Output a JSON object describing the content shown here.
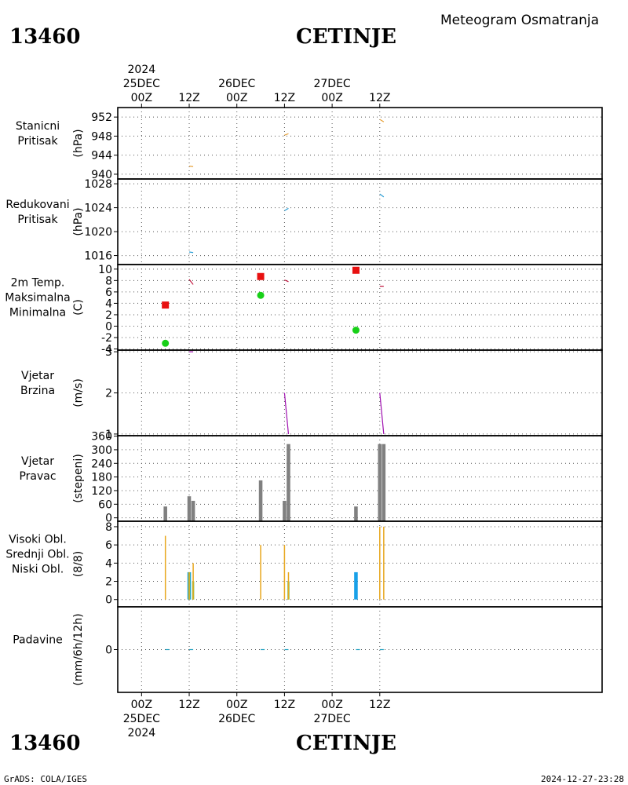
{
  "header": {
    "station_id": "13460",
    "station_name": "CETINJE",
    "subtitle": "Meteogram Osmatranja"
  },
  "footer": {
    "left": "GrADS: COLA/IGES",
    "right": "2024-12-27-23:28"
  },
  "colors": {
    "pressure_station": "#e8a33c",
    "pressure_reduced": "#2a9fd6",
    "temp_label": "#c0143c",
    "temp_max": "#e81010",
    "temp_min": "#18d018",
    "wind": "#a010b0",
    "wind_dir_bar": "#808080",
    "cloud_high": "#18a0e8",
    "cloud_mid": "#60c060",
    "cloud_low": "#e8a820",
    "precip": "#20a0c0"
  },
  "chart_data": {
    "type": "meteogram",
    "time_axis": {
      "unit": "hours since first tick",
      "range": [
        -6,
        116
      ],
      "ticks": [
        {
          "h": 0,
          "label": "00Z",
          "date": "25DEC",
          "year": "2024"
        },
        {
          "h": 12,
          "label": "12Z"
        },
        {
          "h": 24,
          "label": "00Z",
          "date": "26DEC"
        },
        {
          "h": 36,
          "label": "12Z"
        },
        {
          "h": 48,
          "label": "00Z",
          "date": "27DEC"
        },
        {
          "h": 60,
          "label": "12Z"
        }
      ]
    },
    "panels": [
      {
        "id": "station_pressure",
        "labels": [
          "Stanicni",
          "Pritisak"
        ],
        "label_colors": [
          "pressure_station",
          "pressure_station"
        ],
        "unit": "(hPa)",
        "ylim": [
          939,
          954
        ],
        "yticks": [
          940,
          944,
          948,
          952
        ],
        "series": [
          {
            "type": "line",
            "color": "pressure_station",
            "segments": [
              [
                [
                  12.0,
                  941.7
                ],
                [
                  13.0,
                  941.6
                ]
              ],
              [
                [
                  36.0,
                  948.2
                ],
                [
                  37.0,
                  948.5
                ]
              ],
              [
                [
                  60.0,
                  951.5
                ],
                [
                  61.0,
                  951.0
                ]
              ]
            ]
          }
        ]
      },
      {
        "id": "reduced_pressure",
        "labels": [
          "Redukovani",
          "Pritisak"
        ],
        "label_colors": [
          "pressure_reduced",
          "pressure_reduced"
        ],
        "unit": "(hPa)",
        "ylim": [
          1014.5,
          1028.8
        ],
        "yticks": [
          1016,
          1020,
          1024,
          1028
        ],
        "series": [
          {
            "type": "line",
            "color": "pressure_reduced",
            "segments": [
              [
                [
                  12.0,
                  1016.6
                ],
                [
                  13.0,
                  1016.5
                ]
              ],
              [
                [
                  36.0,
                  1023.5
                ],
                [
                  37.0,
                  1023.9
                ]
              ],
              [
                [
                  60.0,
                  1026.3
                ],
                [
                  61.0,
                  1025.8
                ]
              ]
            ]
          }
        ]
      },
      {
        "id": "temperature",
        "labels": [
          "2m Temp.",
          "Maksimalna",
          "Minimalna"
        ],
        "label_colors": [
          "temp_label",
          "temp_max",
          "temp_min"
        ],
        "unit": "(C)",
        "ylim": [
          -4.2,
          10.8
        ],
        "yticks": [
          -4,
          -2,
          0,
          2,
          4,
          6,
          8,
          10
        ],
        "series": [
          {
            "type": "line",
            "color": "temp_label",
            "segments": [
              [
                [
                  12.0,
                  8.2
                ],
                [
                  13.0,
                  7.3
                ]
              ],
              [
                [
                  36.0,
                  8.1
                ],
                [
                  37.0,
                  7.8
                ]
              ],
              [
                [
                  60.0,
                  7.0
                ],
                [
                  61.0,
                  7.0
                ]
              ]
            ]
          },
          {
            "type": "points",
            "shape": "square",
            "color": "temp_max",
            "points": [
              [
                6,
                3.7
              ],
              [
                30,
                8.7
              ],
              [
                54,
                9.8
              ]
            ]
          },
          {
            "type": "points",
            "shape": "circle",
            "color": "temp_min",
            "points": [
              [
                6,
                -3.0
              ],
              [
                30,
                5.4
              ],
              [
                54,
                -0.7
              ]
            ]
          }
        ]
      },
      {
        "id": "wind_speed",
        "labels": [
          "Vjetar",
          "Brzina"
        ],
        "label_colors": [
          "wind",
          "wind"
        ],
        "unit": "(m/s)",
        "ylim": [
          0.96,
          3.04
        ],
        "yticks": [
          1,
          2,
          3
        ],
        "series": [
          {
            "type": "line",
            "color": "wind",
            "segments": [
              [
                [
                  12.0,
                  3.0
                ],
                [
                  13.0,
                  3.0
                ]
              ],
              [
                [
                  36.0,
                  2.0
                ],
                [
                  37.0,
                  1.0
                ]
              ],
              [
                [
                  60.0,
                  2.0
                ],
                [
                  61.0,
                  1.0
                ]
              ]
            ]
          }
        ]
      },
      {
        "id": "wind_direction",
        "labels": [
          "Vjetar",
          "Pravac"
        ],
        "label_colors": [
          "wind",
          "wind"
        ],
        "unit": "(stepeni)",
        "ylim": [
          -15,
          362
        ],
        "yticks": [
          0,
          60,
          120,
          180,
          240,
          300,
          360
        ],
        "series": [
          {
            "type": "bars",
            "color": "wind_dir_bar",
            "base": -15,
            "width_h": 0.9,
            "bars": [
              [
                6,
                50
              ],
              [
                12,
                95
              ],
              [
                13,
                75
              ],
              [
                30,
                165
              ],
              [
                36,
                75
              ],
              [
                37,
                325
              ],
              [
                54,
                50
              ],
              [
                60,
                325
              ],
              [
                61,
                325
              ]
            ]
          }
        ]
      },
      {
        "id": "clouds",
        "labels": [
          "Visoki Obl.",
          "Srednji Obl.",
          "Niski Obl."
        ],
        "label_colors": [
          "cloud_high",
          "cloud_high",
          "cloud_low"
        ],
        "unit": "(8/8)",
        "ylim": [
          -0.8,
          8.6
        ],
        "yticks": [
          0,
          2,
          4,
          6,
          8
        ],
        "series": [
          {
            "type": "bars",
            "color": "cloud_high",
            "base": 0,
            "width_h": 0.9,
            "bars": [
              [
                12,
                3
              ],
              [
                54,
                3
              ]
            ]
          },
          {
            "type": "bars",
            "color": "cloud_mid",
            "base": 0,
            "width_h": 0.5,
            "bars": [
              [
                12,
                3
              ],
              [
                13,
                2
              ],
              [
                37,
                2
              ]
            ]
          },
          {
            "type": "bars",
            "color": "cloud_low",
            "base": 0,
            "width_h": 0.3,
            "bars": [
              [
                6,
                7
              ],
              [
                12,
                3
              ],
              [
                13,
                4
              ],
              [
                30,
                6
              ],
              [
                36,
                6
              ],
              [
                37,
                3
              ],
              [
                60,
                8
              ],
              [
                61,
                8
              ]
            ]
          }
        ]
      },
      {
        "id": "precipitation",
        "labels": [
          "Padavine"
        ],
        "label_colors": [
          "precip"
        ],
        "unit": "(mm/6h/12h)",
        "ylim": [
          -1,
          1
        ],
        "yticks": [
          0
        ],
        "series": [
          {
            "type": "line",
            "color": "precip",
            "segments": [
              [
                [
                  6,
                  0.0
                ],
                [
                  7,
                  0.0
                ]
              ],
              [
                [
                  12,
                  0.0
                ],
                [
                  13,
                  0.0
                ]
              ],
              [
                [
                  30,
                  0.0
                ],
                [
                  31,
                  0.0
                ]
              ],
              [
                [
                  36,
                  0.0
                ],
                [
                  37,
                  0.0
                ]
              ],
              [
                [
                  54,
                  0.0
                ],
                [
                  55,
                  0.0
                ]
              ],
              [
                [
                  60,
                  0.0
                ],
                [
                  61,
                  0.0
                ]
              ]
            ]
          }
        ]
      }
    ]
  }
}
